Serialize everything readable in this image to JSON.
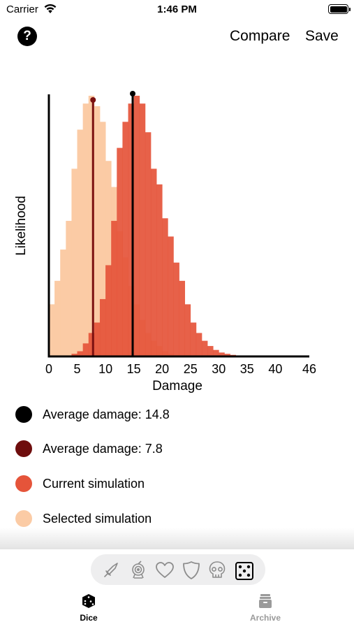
{
  "status_bar": {
    "carrier": "Carrier",
    "time": "1:46 PM"
  },
  "nav": {
    "help_label": "?",
    "compare_label": "Compare",
    "save_label": "Save"
  },
  "chart_data": {
    "type": "bar",
    "xlabel": "Damage",
    "ylabel": "Likelihood",
    "xlim": [
      0,
      46
    ],
    "x_ticks": [
      0,
      5,
      10,
      15,
      20,
      25,
      30,
      35,
      40,
      46
    ],
    "ylim": [
      0,
      1
    ],
    "grid": false,
    "series": [
      {
        "name": "Selected simulation",
        "color": "#fbcba5",
        "x": [
          0,
          1,
          2,
          3,
          4,
          5,
          6,
          7,
          8,
          9,
          10,
          11,
          12,
          13,
          14,
          15,
          16,
          17,
          18,
          19,
          20,
          21,
          22,
          23,
          24
        ],
        "values": [
          0.2,
          0.29,
          0.41,
          0.52,
          0.72,
          0.87,
          0.97,
          1.0,
          0.96,
          0.9,
          0.75,
          0.65,
          0.48,
          0.38,
          0.27,
          0.2,
          0.14,
          0.09,
          0.06,
          0.04,
          0.02,
          0.01,
          0.005,
          0.003,
          0.001
        ]
      },
      {
        "name": "Current simulation",
        "color": "#e5543a",
        "x": [
          4,
          5,
          6,
          7,
          8,
          9,
          10,
          11,
          12,
          13,
          14,
          15,
          16,
          17,
          18,
          19,
          20,
          21,
          22,
          23,
          24,
          25,
          26,
          27,
          28,
          29,
          30,
          31,
          32,
          33,
          34,
          35
        ],
        "values": [
          0.01,
          0.02,
          0.05,
          0.09,
          0.13,
          0.22,
          0.35,
          0.52,
          0.8,
          0.9,
          0.97,
          1.0,
          0.97,
          0.86,
          0.72,
          0.66,
          0.53,
          0.46,
          0.36,
          0.29,
          0.2,
          0.13,
          0.09,
          0.06,
          0.04,
          0.025,
          0.015,
          0.01,
          0.006,
          0.004,
          0.002,
          0.001
        ]
      }
    ],
    "markers": [
      {
        "name": "Average damage: 14.8",
        "x": 14.8,
        "color": "#000000"
      },
      {
        "name": "Average damage: 7.8",
        "x": 7.8,
        "color": "#7b1010"
      }
    ]
  },
  "legend": {
    "items": [
      {
        "label": "Average damage: 14.8",
        "color": "#000000"
      },
      {
        "label": "Average damage: 7.8",
        "color": "#6e0d0d"
      },
      {
        "label": "Current simulation",
        "color": "#e5543a"
      },
      {
        "label": "Selected simulation",
        "color": "#fbcba5"
      }
    ]
  },
  "segment_icons": [
    "sword-icon",
    "target-icon",
    "heart-icon",
    "shield-icon",
    "skull-icon",
    "dice-icon"
  ],
  "tabs": {
    "dice_label": "Dice",
    "archive_label": "Archive"
  }
}
